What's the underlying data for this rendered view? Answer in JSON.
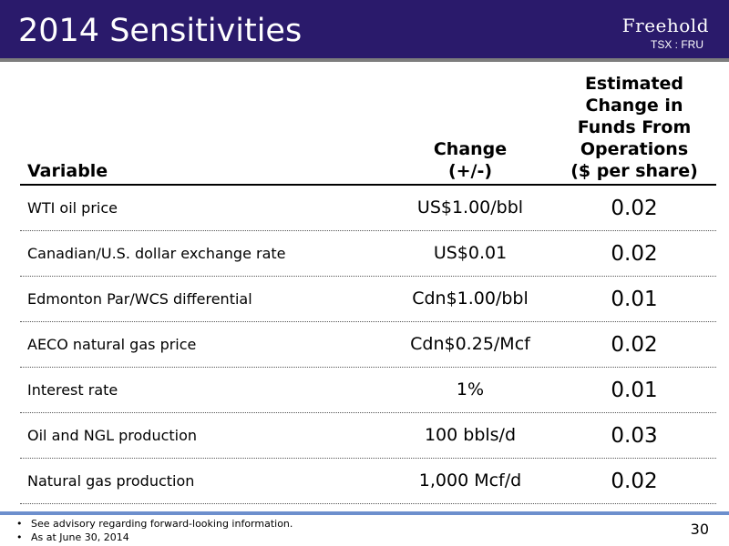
{
  "slide": {
    "title": "2014 Sensitivities",
    "logo": {
      "name": "Freehold",
      "ticker": "TSX : FRU"
    },
    "page_number": "30"
  },
  "table": {
    "headers": {
      "variable": "Variable",
      "change": [
        "Change",
        "(+/-)"
      ],
      "estimate": [
        "Estimated",
        "Change in",
        "Funds From",
        "Operations",
        "($ per share)"
      ]
    },
    "rows": [
      {
        "variable": "WTI oil price",
        "change": "US$1.00/bbl",
        "value": "0.02"
      },
      {
        "variable": "Canadian/U.S. dollar exchange rate",
        "change": "US$0.01",
        "value": "0.02"
      },
      {
        "variable": "Edmonton Par/WCS differential",
        "change": "Cdn$1.00/bbl",
        "value": "0.01"
      },
      {
        "variable": "AECO natural gas price",
        "change": "Cdn$0.25/Mcf",
        "value": "0.02"
      },
      {
        "variable": "Interest rate",
        "change": "1%",
        "value": "0.01"
      },
      {
        "variable": "Oil and NGL production",
        "change": "100 bbls/d",
        "value": "0.03"
      },
      {
        "variable": "Natural gas production",
        "change": "1,000 Mcf/d",
        "value": "0.02"
      }
    ]
  },
  "footnotes": [
    "See advisory regarding forward-looking information.",
    "As at June 30, 2014"
  ],
  "colors": {
    "header_bg": "#2a1a6b",
    "header_stripe": "#7d7d7d",
    "footer_line": "#6d8fcd"
  }
}
